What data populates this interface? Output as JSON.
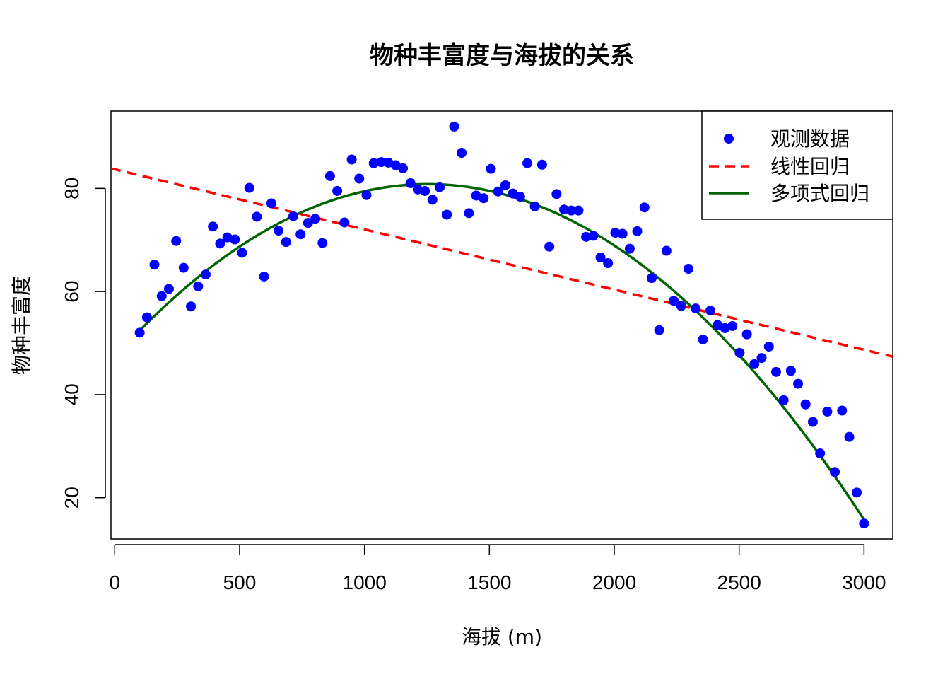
{
  "chart_data": {
    "type": "scatter",
    "title": "物种丰富度与海拔的关系",
    "xlabel": "海拔 (m)",
    "ylabel": "物种丰富度",
    "xlim": [
      -15,
      3115
    ],
    "ylim": [
      12,
      95
    ],
    "xticks": [
      0,
      500,
      1000,
      1500,
      2000,
      2500,
      3000
    ],
    "yticks": [
      20,
      40,
      60,
      80
    ],
    "grid": false,
    "legend_position": "top-right",
    "colors": {
      "points": "#0000ff",
      "linear": "#ff0000",
      "poly": "#006400"
    },
    "legend": [
      {
        "key": "points",
        "label": "观测数据"
      },
      {
        "key": "linear",
        "label": "线性回归"
      },
      {
        "key": "poly",
        "label": "多项式回归"
      }
    ],
    "series": [
      {
        "name": "观测数据",
        "kind": "points",
        "points": [
          [
            100,
            52
          ],
          [
            129,
            55
          ],
          [
            159,
            65.2
          ],
          [
            188,
            59.1
          ],
          [
            217,
            60.5
          ],
          [
            246,
            69.8
          ],
          [
            276,
            64.6
          ],
          [
            305,
            57.1
          ],
          [
            334,
            61
          ],
          [
            364,
            63.3
          ],
          [
            393,
            72.6
          ],
          [
            422,
            69.3
          ],
          [
            451,
            70.5
          ],
          [
            481,
            70.1
          ],
          [
            510,
            67.5
          ],
          [
            539,
            80.1
          ],
          [
            569,
            74.5
          ],
          [
            598,
            62.9
          ],
          [
            627,
            77.1
          ],
          [
            656,
            71.8
          ],
          [
            686,
            69.6
          ],
          [
            715,
            74.6
          ],
          [
            744,
            71.1
          ],
          [
            774,
            73.3
          ],
          [
            803,
            74.1
          ],
          [
            832,
            69.4
          ],
          [
            862,
            82.4
          ],
          [
            891,
            79.5
          ],
          [
            920,
            73.4
          ],
          [
            949,
            85.6
          ],
          [
            979,
            81.9
          ],
          [
            1008,
            78.7
          ],
          [
            1037,
            84.9
          ],
          [
            1067,
            85.1
          ],
          [
            1096,
            85
          ],
          [
            1125,
            84.5
          ],
          [
            1154,
            83.9
          ],
          [
            1184,
            81
          ],
          [
            1213,
            79.8
          ],
          [
            1242,
            79.5
          ],
          [
            1272,
            77.8
          ],
          [
            1301,
            80.2
          ],
          [
            1330,
            74.9
          ],
          [
            1359,
            92
          ],
          [
            1389,
            86.9
          ],
          [
            1418,
            75.2
          ],
          [
            1447,
            78.6
          ],
          [
            1477,
            78.1
          ],
          [
            1506,
            83.8
          ],
          [
            1535,
            79.4
          ],
          [
            1564,
            80.6
          ],
          [
            1594,
            79
          ],
          [
            1623,
            78.4
          ],
          [
            1652,
            84.9
          ],
          [
            1682,
            76.5
          ],
          [
            1711,
            84.6
          ],
          [
            1740,
            68.7
          ],
          [
            1769,
            78.9
          ],
          [
            1799,
            75.9
          ],
          [
            1828,
            75.7
          ],
          [
            1857,
            75.7
          ],
          [
            1887,
            70.6
          ],
          [
            1916,
            70.8
          ],
          [
            1945,
            66.6
          ],
          [
            1975,
            65.5
          ],
          [
            2004,
            71.4
          ],
          [
            2033,
            71.2
          ],
          [
            2062,
            68.3
          ],
          [
            2092,
            71.7
          ],
          [
            2121,
            76.3
          ],
          [
            2150,
            62.6
          ],
          [
            2180,
            52.5
          ],
          [
            2209,
            67.9
          ],
          [
            2238,
            58.2
          ],
          [
            2268,
            57.2
          ],
          [
            2297,
            64.4
          ],
          [
            2326,
            56.7
          ],
          [
            2355,
            50.7
          ],
          [
            2385,
            56.3
          ],
          [
            2414,
            53.5
          ],
          [
            2443,
            52.9
          ],
          [
            2473,
            53.3
          ],
          [
            2502,
            48.1
          ],
          [
            2531,
            51.7
          ],
          [
            2561,
            45.9
          ],
          [
            2590,
            47.1
          ],
          [
            2619,
            49.3
          ],
          [
            2648,
            44.4
          ],
          [
            2678,
            38.9
          ],
          [
            2707,
            44.6
          ],
          [
            2736,
            42.1
          ],
          [
            2766,
            38.1
          ],
          [
            2795,
            34.7
          ],
          [
            2824,
            28.6
          ],
          [
            2853,
            36.7
          ],
          [
            2883,
            25
          ],
          [
            2912,
            36.9
          ],
          [
            2941,
            31.8
          ],
          [
            2971,
            21
          ],
          [
            3000,
            15
          ]
        ]
      },
      {
        "name": "线性回归",
        "kind": "linear",
        "intercept": 83.7,
        "slope": -0.011667
      },
      {
        "name": "多项式回归",
        "kind": "poly",
        "x_range": [
          100,
          3000
        ],
        "coefficients": [
          47.29,
          0.0535,
          -2.134e-05
        ]
      }
    ]
  }
}
